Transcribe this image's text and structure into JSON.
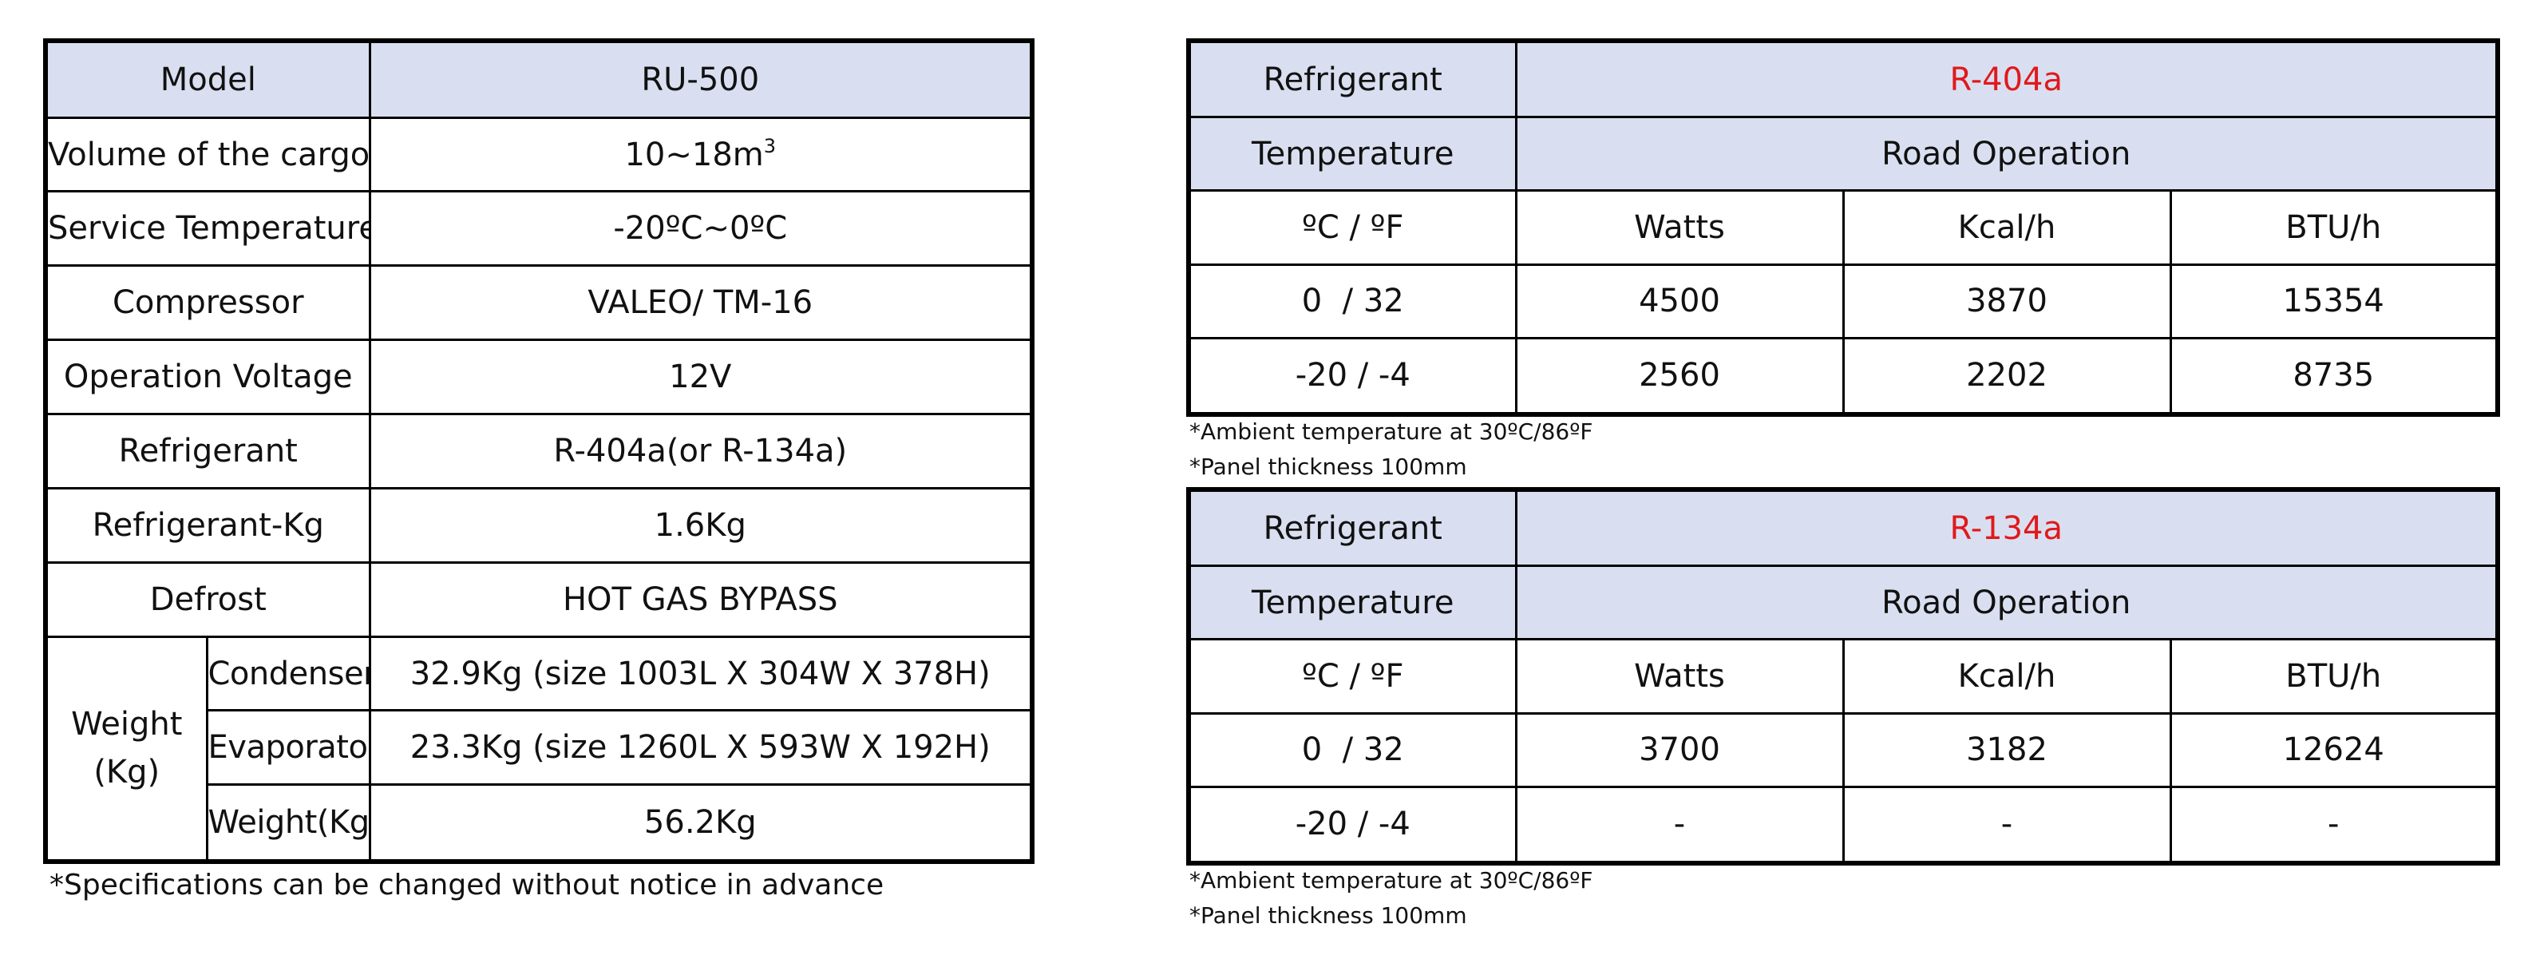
{
  "spec_table": {
    "model_label": "Model",
    "model_value": "RU-500",
    "volume_label": "Volume of the cargo",
    "volume_value": "10~18m",
    "volume_exp": "3",
    "service_temp_label": "Service Temperature",
    "service_temp_value": "-20ºC~0ºC",
    "compressor_label": "Compressor",
    "compressor_value": "VALEO/ TM-16",
    "voltage_label": "Operation Voltage",
    "voltage_value": "12V",
    "refrigerant_label": "Refrigerant",
    "refrigerant_value": "R-404a(or R-134a)",
    "refrigerant_kg_label": "Refrigerant-Kg",
    "refrigerant_kg_value": "1.6Kg",
    "defrost_label": "Defrost",
    "defrost_value": "HOT GAS BYPASS",
    "weight_label_line1": "Weight",
    "weight_label_line2": "(Kg)",
    "condenser_label": "Condenser",
    "condenser_value": "32.9Kg (size 1003L X 304W X 378H)",
    "evaporator_label": "Evaporator",
    "evaporator_value": "23.3Kg (size 1260L X 593W X 192H)",
    "total_weight_label": "Weight(Kg)",
    "total_weight_value": "56.2Kg",
    "footnote": "*Specifications can be changed without notice in advance"
  },
  "capacity_tables": [
    {
      "refrigerant_label": "Refrigerant",
      "refrigerant_value": "R-404a",
      "temperature_label": "Temperature",
      "operation_label": "Road Operation",
      "unit_header": "ºC / ºF",
      "col_watts": "Watts",
      "col_kcal": "Kcal/h",
      "col_btu": "BTU/h",
      "rows": [
        {
          "temp": "0  / 32",
          "watts": "4500",
          "kcal": "3870",
          "btu": "15354"
        },
        {
          "temp": "-20 / -4",
          "watts": "2560",
          "kcal": "2202",
          "btu": "8735"
        }
      ],
      "note_ambient": "*Ambient temperature at 30ºC/86ºF",
      "note_panel": "*Panel thickness 100mm"
    },
    {
      "refrigerant_label": "Refrigerant",
      "refrigerant_value": "R-134a",
      "temperature_label": "Temperature",
      "operation_label": "Road Operation",
      "unit_header": "ºC / ºF",
      "col_watts": "Watts",
      "col_kcal": "Kcal/h",
      "col_btu": "BTU/h",
      "rows": [
        {
          "temp": "0  / 32",
          "watts": "3700",
          "kcal": "3182",
          "btu": "12624"
        },
        {
          "temp": "-20 / -4",
          "watts": "-",
          "kcal": "-",
          "btu": "-"
        }
      ],
      "note_ambient": "*Ambient temperature at 30ºC/86ºF",
      "note_panel": "*Panel thickness 100mm"
    }
  ],
  "colors": {
    "header_fill": "#d9dff0",
    "highlight_text": "#e0191c",
    "border": "#000000"
  }
}
